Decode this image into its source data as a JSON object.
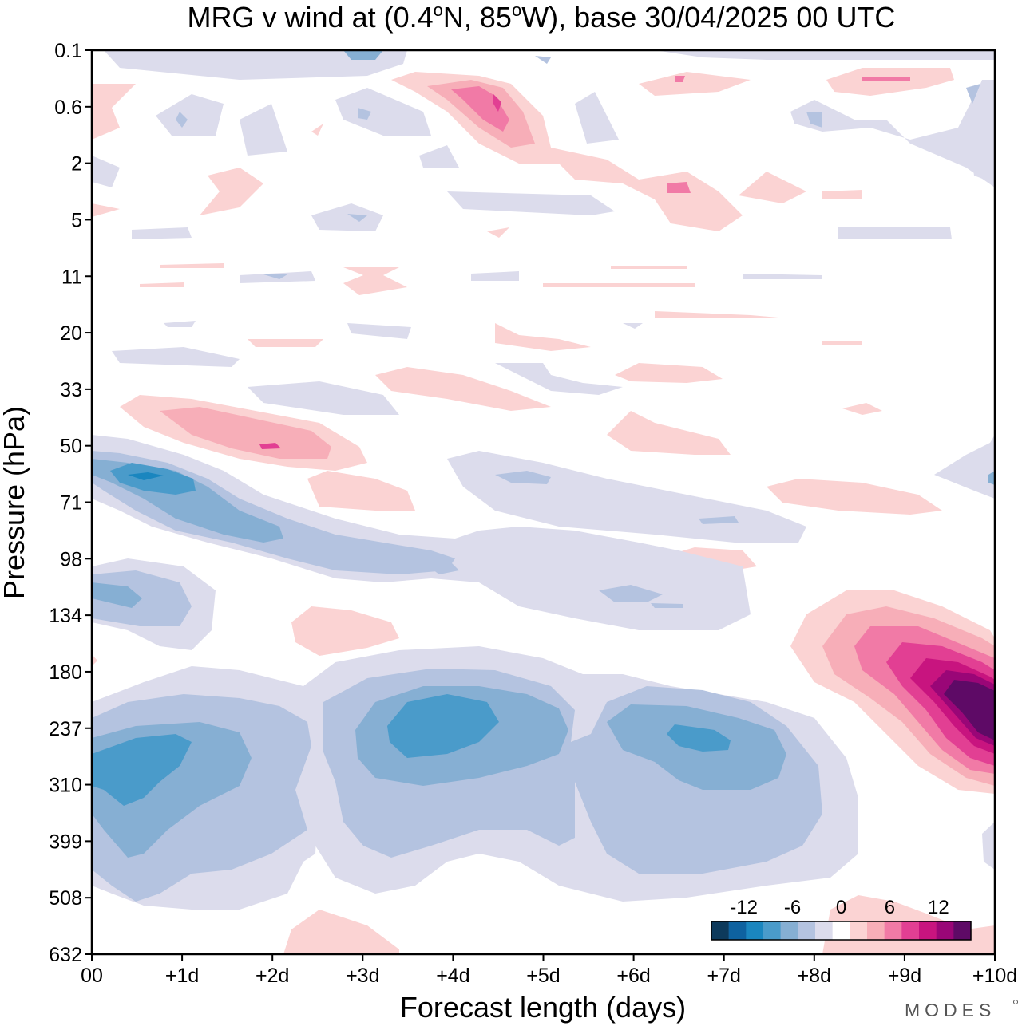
{
  "chart_data": {
    "type": "heatmap",
    "title": "MRG v wind at (0.4°N, 85°W),  base 30/04/2025  00 UTC",
    "title_parts": [
      "MRG v wind at (0.4",
      "o",
      "N, 85",
      "o",
      "W),  base 30/04/2025  00 UTC"
    ],
    "xlabel": "Forecast length (days)",
    "ylabel": "Pressure (hPa)",
    "x_ticks": [
      "00",
      "+1d",
      "+2d",
      "+3d",
      "+4d",
      "+5d",
      "+6d",
      "+7d",
      "+8d",
      "+9d",
      "+10d"
    ],
    "xlim": [
      0,
      10
    ],
    "y_ticks": [
      "0.1",
      "0.6",
      "2",
      "5",
      "11",
      "20",
      "33",
      "50",
      "71",
      "98",
      "134",
      "180",
      "237",
      "310",
      "399",
      "508",
      "632"
    ],
    "y_direction": "pressure increasing downward",
    "colorbar": {
      "tick_labels": [
        "-12",
        "-6",
        "0",
        "6",
        "12"
      ],
      "levels": [
        -16,
        -14,
        -12,
        -10,
        -8,
        -6,
        -4,
        -2,
        2,
        4,
        6,
        8,
        10,
        12,
        14,
        16
      ],
      "colors": [
        "#0d3a5c",
        "#0e62a0",
        "#1a86bf",
        "#4a9bca",
        "#86afd3",
        "#b4c3e0",
        "#dcdcec",
        "#ffffff",
        "#fbd3d3",
        "#f7aeb8",
        "#f17aa6",
        "#e23f93",
        "#c8147f",
        "#9a0677",
        "#5e0a66"
      ]
    },
    "features": [
      {
        "x": 9.7,
        "p": "237",
        "value": 17,
        "sign": "positive"
      },
      {
        "x": 4.0,
        "p": "237",
        "value": -10,
        "sign": "negative"
      },
      {
        "x": 0.8,
        "p": "270",
        "value": -9,
        "sign": "negative"
      },
      {
        "x": 6.8,
        "p": "260",
        "value": -9,
        "sign": "negative"
      },
      {
        "x": 0.6,
        "p": "62",
        "value": -11,
        "sign": "negative"
      },
      {
        "x": 2.0,
        "p": "50",
        "value": 8,
        "sign": "positive"
      },
      {
        "x": 4.5,
        "p": "0.6",
        "value": 10,
        "sign": "positive"
      }
    ]
  },
  "colors": {
    "background": "#ffffff",
    "text": "#000000",
    "brand": "#555555"
  },
  "brand": "MODES"
}
